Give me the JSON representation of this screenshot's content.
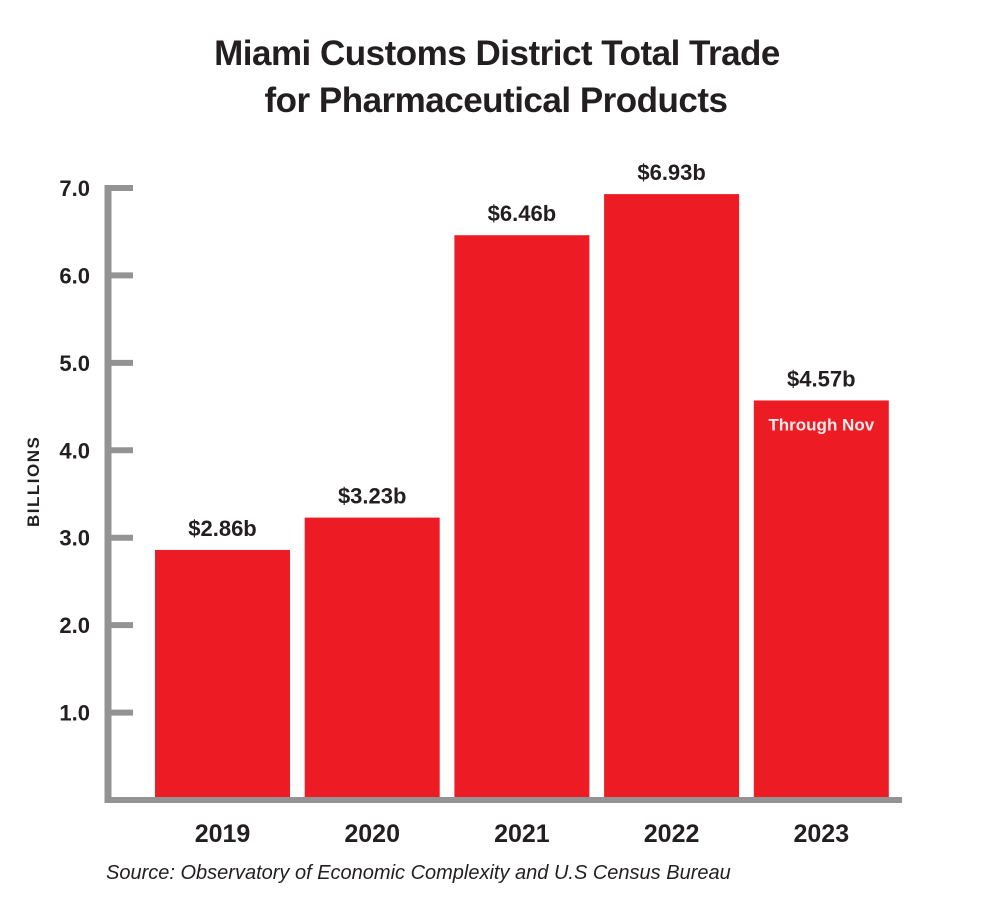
{
  "chart_data": {
    "type": "bar",
    "title": "Miami Customs District Total Trade for Pharmaceutical Products",
    "title_lines": [
      "Miami Customs District Total Trade",
      "for Pharmaceutical Products"
    ],
    "xlabel": "",
    "ylabel": "BILLIONS",
    "categories": [
      "2019",
      "2020",
      "2021",
      "2022",
      "2023"
    ],
    "values": [
      2.86,
      3.23,
      6.46,
      6.93,
      4.57
    ],
    "data_labels": [
      "$2.86b",
      "$3.23b",
      "$6.46b",
      "$6.93b",
      "$4.57b"
    ],
    "annotations": [
      {
        "category": "2023",
        "text": "Through Nov"
      }
    ],
    "yticks": [
      "1.0",
      "2.0",
      "3.0",
      "4.0",
      "5.0",
      "6.0",
      "7.0"
    ],
    "ylim": [
      0,
      7
    ],
    "grid": false,
    "bar_color": "#ed1c24",
    "axis_color": "#939393",
    "source": "Source: Observatory of Economic Complexity and U.S Census Bureau"
  }
}
